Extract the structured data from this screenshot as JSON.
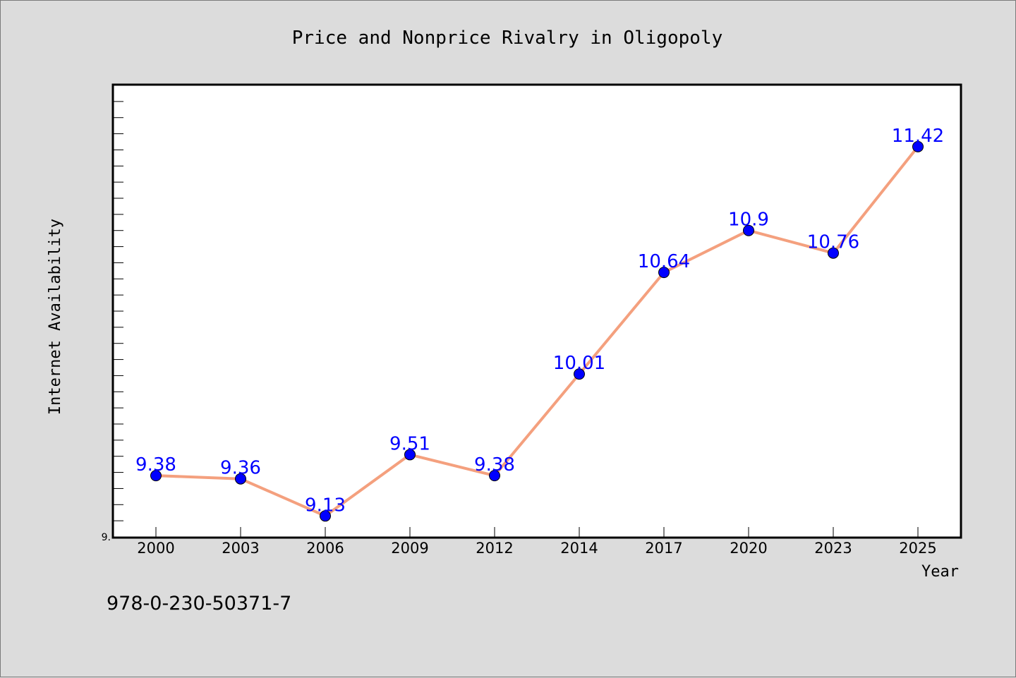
{
  "chart_data": {
    "type": "line",
    "title": "Price and Nonprice Rivalry in Oligopoly",
    "xlabel": "Year",
    "ylabel": "Internet Availability",
    "categories": [
      "2000",
      "2003",
      "2006",
      "2009",
      "2012",
      "2014",
      "2017",
      "2020",
      "2023",
      "2025"
    ],
    "series": [
      {
        "values": [
          9.38,
          9.36,
          9.13,
          9.51,
          9.38,
          10.01,
          10.64,
          10.9,
          10.76,
          11.42
        ],
        "data_labels": [
          "9.38",
          "9.36",
          "9.13",
          "9.51",
          "9.38",
          "10.01",
          "10.64",
          "10.9",
          "10.76",
          "11.42"
        ]
      }
    ],
    "ylim": [
      9.0,
      11.8
    ],
    "y_tick_labels": [
      "9."
    ],
    "grid": false,
    "line_color": "#f4a07e",
    "marker_color": "#0000ff",
    "label_color": "#0000ff"
  },
  "caption": "978-0-230-50371-7"
}
